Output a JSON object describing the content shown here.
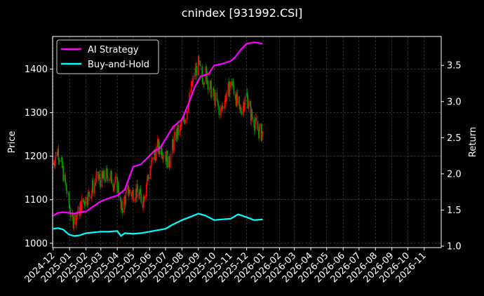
{
  "chart_data": {
    "type": "line",
    "title": "cnindex [931992.CSI]",
    "ylabel_left": "Price",
    "ylabel_right": "Return",
    "xlabel": "",
    "ylim_left": [
      990,
      1475
    ],
    "ylim_right": [
      0.98,
      3.9
    ],
    "yticks_left": [
      1000,
      1100,
      1200,
      1300,
      1400
    ],
    "yticks_right": [
      1.0,
      1.5,
      2.0,
      2.5,
      3.0,
      3.5
    ],
    "xlim": [
      "2024-11-30",
      "2026-12-03"
    ],
    "x_tick_labels": [
      "2024-12",
      "2025-01",
      "2025-02",
      "2025-03",
      "2025-04",
      "2025-05",
      "2025-06",
      "2025-07",
      "2025-08",
      "2025-09",
      "2025-10",
      "2025-11",
      "2025-12",
      "2026-01",
      "2026-02",
      "2026-03",
      "2026-04",
      "2026-05",
      "2026-06",
      "2026-07",
      "2026-08",
      "2026-09",
      "2026-10",
      "2026-11"
    ],
    "x_tick_dates": [
      "2024-12-01",
      "2025-01-01",
      "2025-02-01",
      "2025-03-01",
      "2025-04-01",
      "2025-05-01",
      "2025-06-01",
      "2025-07-01",
      "2025-08-01",
      "2025-09-01",
      "2025-10-01",
      "2025-11-01",
      "2025-12-01",
      "2026-01-01",
      "2026-02-01",
      "2026-03-01",
      "2026-04-01",
      "2026-05-01",
      "2026-06-01",
      "2026-07-01",
      "2026-08-01",
      "2026-09-01",
      "2026-10-01",
      "2026-11-01"
    ],
    "grid": true,
    "legend_position": "top-left",
    "candle_up_color": "#ff0000",
    "candle_down_color": "#00a000",
    "price_points": [
      {
        "date": "2024-12-01",
        "price": 1180
      },
      {
        "date": "2024-12-05",
        "price": 1200
      },
      {
        "date": "2024-12-10",
        "price": 1215
      },
      {
        "date": "2024-12-15",
        "price": 1190
      },
      {
        "date": "2024-12-20",
        "price": 1160
      },
      {
        "date": "2024-12-25",
        "price": 1130
      },
      {
        "date": "2024-12-31",
        "price": 1090
      },
      {
        "date": "2025-01-06",
        "price": 1050
      },
      {
        "date": "2025-01-12",
        "price": 1060
      },
      {
        "date": "2025-01-18",
        "price": 1070
      },
      {
        "date": "2025-01-24",
        "price": 1090
      },
      {
        "date": "2025-01-30",
        "price": 1100
      },
      {
        "date": "2025-02-06",
        "price": 1110
      },
      {
        "date": "2025-02-12",
        "price": 1125
      },
      {
        "date": "2025-02-18",
        "price": 1140
      },
      {
        "date": "2025-02-24",
        "price": 1150
      },
      {
        "date": "2025-03-02",
        "price": 1145
      },
      {
        "date": "2025-03-08",
        "price": 1150
      },
      {
        "date": "2025-03-14",
        "price": 1160
      },
      {
        "date": "2025-03-20",
        "price": 1150
      },
      {
        "date": "2025-03-26",
        "price": 1140
      },
      {
        "date": "2025-04-03",
        "price": 1130
      },
      {
        "date": "2025-04-08",
        "price": 1075
      },
      {
        "date": "2025-04-15",
        "price": 1100
      },
      {
        "date": "2025-04-22",
        "price": 1120
      },
      {
        "date": "2025-04-28",
        "price": 1115
      },
      {
        "date": "2025-05-05",
        "price": 1120
      },
      {
        "date": "2025-05-12",
        "price": 1110
      },
      {
        "date": "2025-05-19",
        "price": 1100
      },
      {
        "date": "2025-05-26",
        "price": 1140
      },
      {
        "date": "2025-06-02",
        "price": 1170
      },
      {
        "date": "2025-06-09",
        "price": 1200
      },
      {
        "date": "2025-06-16",
        "price": 1220
      },
      {
        "date": "2025-06-23",
        "price": 1215
      },
      {
        "date": "2025-06-30",
        "price": 1210
      },
      {
        "date": "2025-07-07",
        "price": 1180
      },
      {
        "date": "2025-07-14",
        "price": 1220
      },
      {
        "date": "2025-07-21",
        "price": 1250
      },
      {
        "date": "2025-07-28",
        "price": 1260
      },
      {
        "date": "2025-08-04",
        "price": 1280
      },
      {
        "date": "2025-08-11",
        "price": 1310
      },
      {
        "date": "2025-08-18",
        "price": 1350
      },
      {
        "date": "2025-08-25",
        "price": 1390
      },
      {
        "date": "2025-09-01",
        "price": 1410
      },
      {
        "date": "2025-09-08",
        "price": 1380
      },
      {
        "date": "2025-09-15",
        "price": 1390
      },
      {
        "date": "2025-09-22",
        "price": 1360
      },
      {
        "date": "2025-09-29",
        "price": 1340
      },
      {
        "date": "2025-10-06",
        "price": 1320
      },
      {
        "date": "2025-10-13",
        "price": 1300
      },
      {
        "date": "2025-10-20",
        "price": 1330
      },
      {
        "date": "2025-10-27",
        "price": 1350
      },
      {
        "date": "2025-11-03",
        "price": 1370
      },
      {
        "date": "2025-11-10",
        "price": 1340
      },
      {
        "date": "2025-11-17",
        "price": 1300
      },
      {
        "date": "2025-11-24",
        "price": 1320
      },
      {
        "date": "2025-12-01",
        "price": 1340
      },
      {
        "date": "2025-12-08",
        "price": 1300
      },
      {
        "date": "2025-12-15",
        "price": 1280
      },
      {
        "date": "2025-12-22",
        "price": 1260
      },
      {
        "date": "2025-12-31",
        "price": 1250
      }
    ],
    "series": [
      {
        "name": "AI Strategy",
        "color": "#ff00ff",
        "points": [
          {
            "date": "2024-12-01",
            "value": 1.42
          },
          {
            "date": "2024-12-10",
            "value": 1.46
          },
          {
            "date": "2024-12-20",
            "value": 1.47
          },
          {
            "date": "2024-12-31",
            "value": 1.46
          },
          {
            "date": "2025-01-10",
            "value": 1.45
          },
          {
            "date": "2025-01-20",
            "value": 1.47
          },
          {
            "date": "2025-02-01",
            "value": 1.48
          },
          {
            "date": "2025-02-15",
            "value": 1.55
          },
          {
            "date": "2025-03-01",
            "value": 1.62
          },
          {
            "date": "2025-03-15",
            "value": 1.66
          },
          {
            "date": "2025-04-01",
            "value": 1.7
          },
          {
            "date": "2025-04-15",
            "value": 1.78
          },
          {
            "date": "2025-05-01",
            "value": 2.1
          },
          {
            "date": "2025-05-15",
            "value": 2.13
          },
          {
            "date": "2025-06-01",
            "value": 2.25
          },
          {
            "date": "2025-06-10",
            "value": 2.32
          },
          {
            "date": "2025-06-20",
            "value": 2.35
          },
          {
            "date": "2025-07-01",
            "value": 2.48
          },
          {
            "date": "2025-07-15",
            "value": 2.65
          },
          {
            "date": "2025-08-01",
            "value": 2.75
          },
          {
            "date": "2025-08-15",
            "value": 3.0
          },
          {
            "date": "2025-08-25",
            "value": 3.2
          },
          {
            "date": "2025-09-05",
            "value": 3.35
          },
          {
            "date": "2025-09-20",
            "value": 3.38
          },
          {
            "date": "2025-10-01",
            "value": 3.5
          },
          {
            "date": "2025-10-15",
            "value": 3.52
          },
          {
            "date": "2025-11-01",
            "value": 3.56
          },
          {
            "date": "2025-11-10",
            "value": 3.62
          },
          {
            "date": "2025-11-20",
            "value": 3.72
          },
          {
            "date": "2025-12-01",
            "value": 3.8
          },
          {
            "date": "2025-12-15",
            "value": 3.82
          },
          {
            "date": "2025-12-31",
            "value": 3.8
          }
        ]
      },
      {
        "name": "Buy-and-Hold",
        "color": "#00ffff",
        "points": [
          {
            "date": "2024-12-01",
            "value": 1.24
          },
          {
            "date": "2024-12-10",
            "value": 1.25
          },
          {
            "date": "2024-12-20",
            "value": 1.23
          },
          {
            "date": "2024-12-31",
            "value": 1.16
          },
          {
            "date": "2025-01-10",
            "value": 1.14
          },
          {
            "date": "2025-01-20",
            "value": 1.15
          },
          {
            "date": "2025-02-01",
            "value": 1.18
          },
          {
            "date": "2025-02-15",
            "value": 1.19
          },
          {
            "date": "2025-03-01",
            "value": 1.2
          },
          {
            "date": "2025-03-15",
            "value": 1.2
          },
          {
            "date": "2025-04-01",
            "value": 1.21
          },
          {
            "date": "2025-04-08",
            "value": 1.14
          },
          {
            "date": "2025-04-15",
            "value": 1.18
          },
          {
            "date": "2025-05-01",
            "value": 1.17
          },
          {
            "date": "2025-05-15",
            "value": 1.18
          },
          {
            "date": "2025-06-01",
            "value": 1.2
          },
          {
            "date": "2025-06-15",
            "value": 1.22
          },
          {
            "date": "2025-07-01",
            "value": 1.24
          },
          {
            "date": "2025-07-15",
            "value": 1.3
          },
          {
            "date": "2025-08-01",
            "value": 1.36
          },
          {
            "date": "2025-08-15",
            "value": 1.4
          },
          {
            "date": "2025-09-01",
            "value": 1.45
          },
          {
            "date": "2025-09-15",
            "value": 1.42
          },
          {
            "date": "2025-10-01",
            "value": 1.36
          },
          {
            "date": "2025-10-15",
            "value": 1.37
          },
          {
            "date": "2025-11-01",
            "value": 1.38
          },
          {
            "date": "2025-11-15",
            "value": 1.44
          },
          {
            "date": "2025-12-01",
            "value": 1.4
          },
          {
            "date": "2025-12-15",
            "value": 1.36
          },
          {
            "date": "2025-12-31",
            "value": 1.37
          }
        ]
      }
    ]
  }
}
